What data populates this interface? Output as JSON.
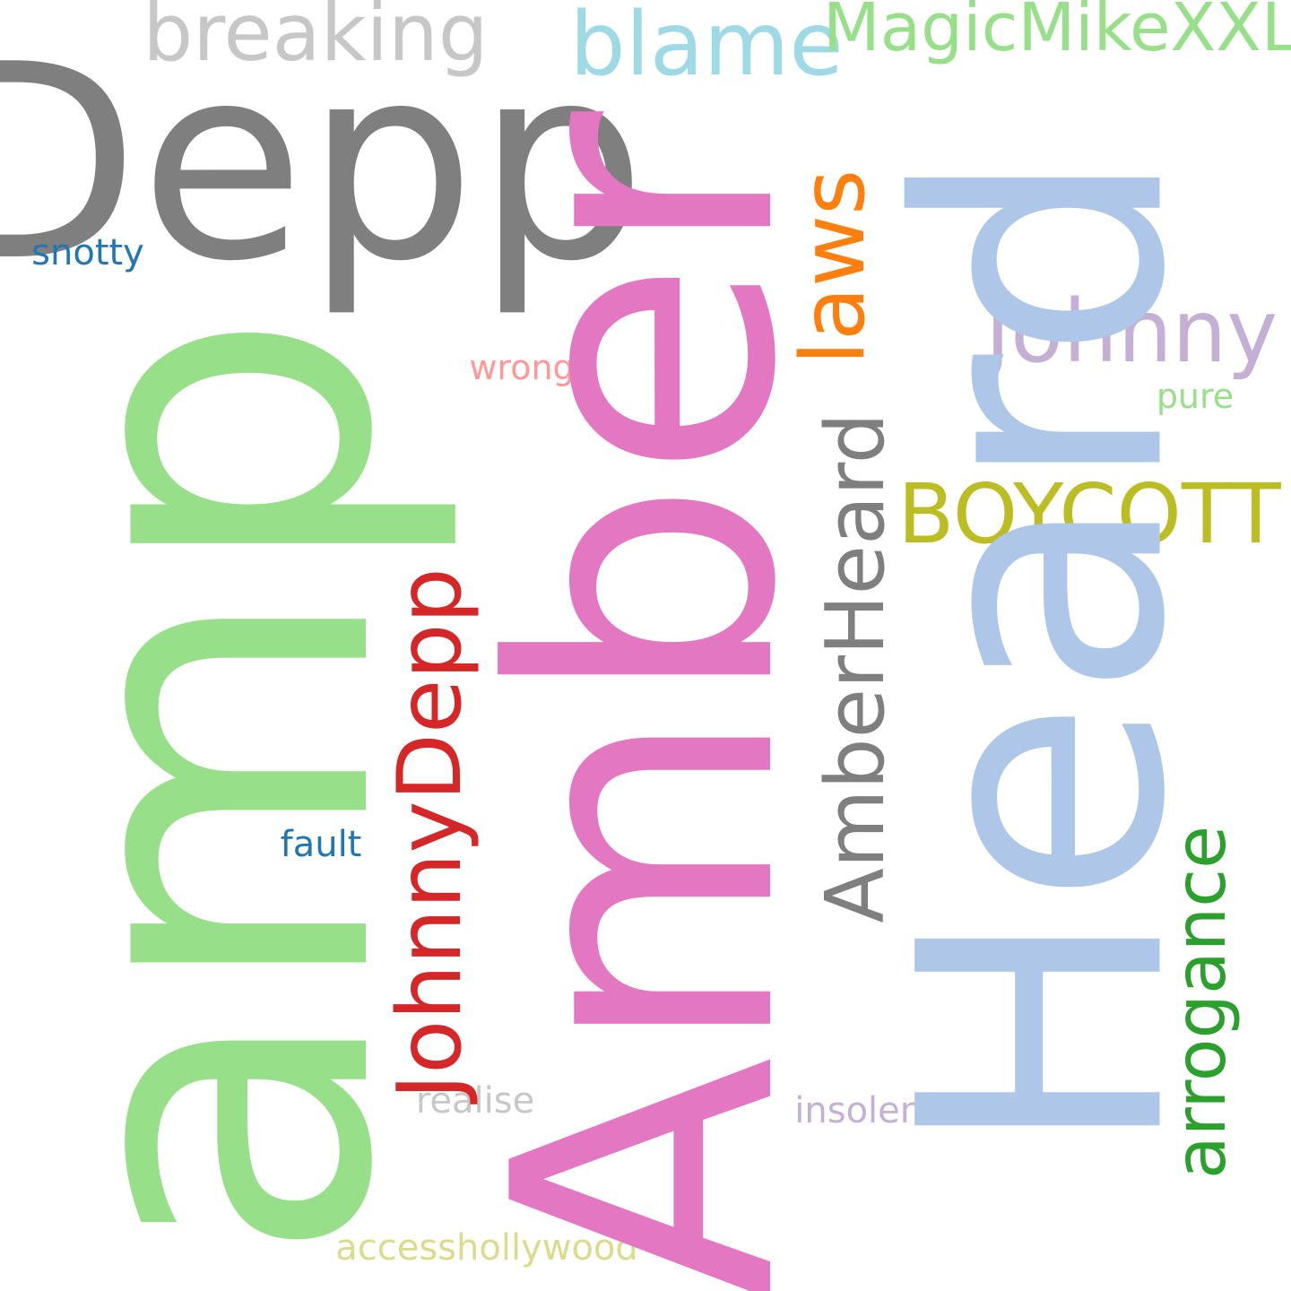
{
  "cloud": {
    "words": {
      "depp": {
        "text": "Depp",
        "color": "#7f7f7f"
      },
      "breaking": {
        "text": "breaking",
        "color": "#c7c7c7"
      },
      "blame": {
        "text": "blame",
        "color": "#9edae5"
      },
      "magicmikexxl": {
        "text": "MagicMikeXXL",
        "color": "#98df8a"
      },
      "snotty": {
        "text": "snotty",
        "color": "#1f77b4"
      },
      "johnny": {
        "text": "Johnny",
        "color": "#c5b0d5"
      },
      "wrong": {
        "text": "wrong",
        "color": "#ff9896"
      },
      "pure": {
        "text": "pure",
        "color": "#98df8a"
      },
      "boycott": {
        "text": "BOYCOTT",
        "color": "#bcbd22"
      },
      "fault": {
        "text": "fault",
        "color": "#1f77b4"
      },
      "realise": {
        "text": "realise",
        "color": "#c7c7c7"
      },
      "insolence": {
        "text": "insolence",
        "color": "#c5b0d5"
      },
      "accesshollywood": {
        "text": "accesshollywood",
        "color": "#dbdb8d"
      },
      "amp": {
        "text": "amp",
        "color": "#98df8a"
      },
      "amber": {
        "text": "Amber",
        "color": "#e377c2"
      },
      "heard": {
        "text": "Heard",
        "color": "#aec7e8"
      },
      "laws": {
        "text": "laws",
        "color": "#ff7f0e"
      },
      "amberheard": {
        "text": "AmberHeard",
        "color": "#7f7f7f"
      },
      "johnnydepp": {
        "text": "JohnnyDepp",
        "color": "#d62728"
      },
      "arrogance": {
        "text": "arrogance",
        "color": "#2ca02c"
      }
    }
  }
}
